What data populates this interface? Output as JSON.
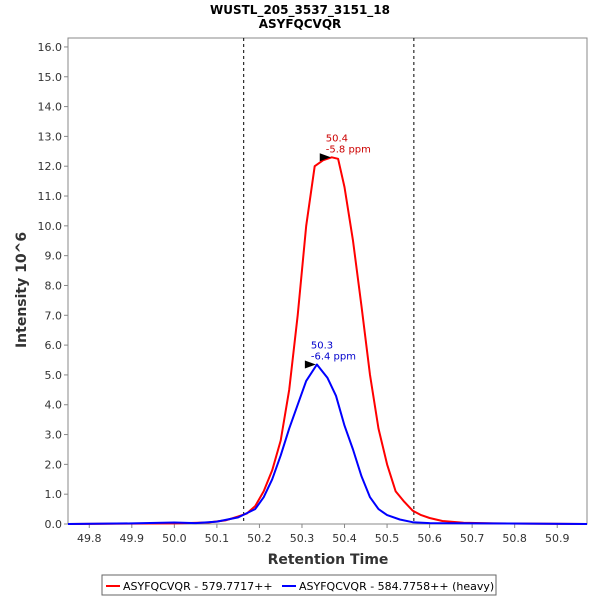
{
  "chart_data": {
    "type": "line",
    "title": "WUSTL_205_3537_3151_18",
    "subtitle": "ASYFQCVQR",
    "xlabel": "Retention Time",
    "ylabel": "Intensity 10^6",
    "xlim": [
      49.75,
      50.97
    ],
    "ylim": [
      0,
      16.3
    ],
    "x_ticks": [
      "49.8",
      "49.9",
      "50.0",
      "50.1",
      "50.2",
      "50.3",
      "50.4",
      "50.5",
      "50.6",
      "50.7",
      "50.8",
      "50.9"
    ],
    "y_ticks": [
      "0.0",
      "1.0",
      "2.0",
      "3.0",
      "4.0",
      "5.0",
      "6.0",
      "7.0",
      "8.0",
      "9.0",
      "10.0",
      "11.0",
      "12.0",
      "13.0",
      "14.0",
      "15.0",
      "16.0"
    ],
    "vertical_lines": [
      50.163,
      50.563
    ],
    "series": [
      {
        "name": "ASYFQCVQR - 579.7717++",
        "color": "#ff0000",
        "x": [
          49.75,
          50.0,
          50.08,
          50.12,
          50.15,
          50.17,
          50.19,
          50.21,
          50.23,
          50.25,
          50.27,
          50.29,
          50.31,
          50.33,
          50.35,
          50.37,
          50.385,
          50.4,
          50.42,
          50.44,
          50.46,
          50.48,
          50.5,
          50.52,
          50.54,
          50.56,
          50.58,
          50.6,
          50.63,
          50.68,
          50.75,
          50.97
        ],
        "y": [
          0.0,
          0.02,
          0.05,
          0.12,
          0.25,
          0.35,
          0.6,
          1.1,
          1.8,
          2.8,
          4.5,
          7.0,
          10.0,
          12.0,
          12.2,
          12.3,
          12.25,
          11.3,
          9.5,
          7.3,
          5.0,
          3.2,
          2.0,
          1.1,
          0.75,
          0.45,
          0.3,
          0.2,
          0.1,
          0.04,
          0.02,
          0.0
        ]
      },
      {
        "name": "ASYFQCVQR - 584.7758++ (heavy)",
        "color": "#0000ff",
        "x": [
          49.75,
          49.9,
          50.0,
          50.05,
          50.1,
          50.15,
          50.19,
          50.21,
          50.23,
          50.25,
          50.27,
          50.29,
          50.31,
          50.335,
          50.36,
          50.38,
          50.4,
          50.42,
          50.44,
          50.46,
          50.48,
          50.5,
          50.53,
          50.56,
          50.6,
          50.97
        ],
        "y": [
          0.0,
          0.02,
          0.05,
          0.03,
          0.08,
          0.22,
          0.5,
          0.9,
          1.5,
          2.3,
          3.2,
          4.0,
          4.8,
          5.35,
          4.9,
          4.3,
          3.3,
          2.5,
          1.6,
          0.9,
          0.5,
          0.3,
          0.15,
          0.06,
          0.03,
          0.0
        ]
      }
    ],
    "annotations": [
      {
        "x": 50.37,
        "y": 12.3,
        "label_rt": "50.4",
        "label_ppm": "-5.8 ppm",
        "color": "#cc0000"
      },
      {
        "x": 50.335,
        "y": 5.35,
        "label_rt": "50.3",
        "label_ppm": "-6.4 ppm",
        "color": "#0000cc"
      }
    ],
    "legend_position": "bottom"
  }
}
